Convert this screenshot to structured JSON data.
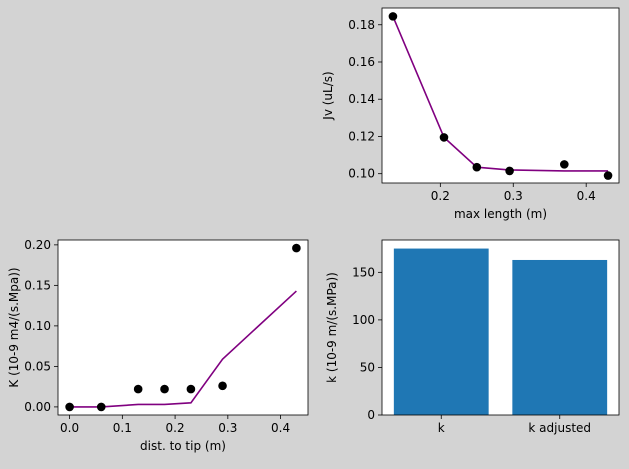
{
  "figure": {
    "background": "#d3d3d3"
  },
  "chart_data": [
    {
      "id": "jv",
      "type": "scatter+line",
      "xlabel": "max length (m)",
      "ylabel": "Jv (uL/s)",
      "xlim": [
        0.12,
        0.445
      ],
      "ylim": [
        0.095,
        0.189
      ],
      "xticks": [
        0.2,
        0.3,
        0.4
      ],
      "xtick_labels": [
        "0.2",
        "0.3",
        "0.4"
      ],
      "yticks": [
        0.1,
        0.12,
        0.14,
        0.16,
        0.18
      ],
      "ytick_labels": [
        "0.10",
        "0.12",
        "0.14",
        "0.16",
        "0.18"
      ],
      "points": [
        [
          0.135,
          0.1845
        ],
        [
          0.205,
          0.1195
        ],
        [
          0.25,
          0.1035
        ],
        [
          0.295,
          0.1015
        ],
        [
          0.37,
          0.105
        ],
        [
          0.43,
          0.099
        ]
      ],
      "line": [
        [
          0.135,
          0.1845
        ],
        [
          0.205,
          0.1195
        ],
        [
          0.25,
          0.1035
        ],
        [
          0.295,
          0.102
        ],
        [
          0.37,
          0.1015
        ],
        [
          0.43,
          0.1015
        ]
      ],
      "point_color": "#000000",
      "line_color": "#800080"
    },
    {
      "id": "K",
      "type": "scatter+line",
      "xlabel": "dist. to tip (m)",
      "ylabel": "K (10-9 m4/(s.Mpa))",
      "xlim": [
        -0.022,
        0.452
      ],
      "ylim": [
        -0.01,
        0.206
      ],
      "xticks": [
        0.0,
        0.1,
        0.2,
        0.3,
        0.4
      ],
      "xtick_labels": [
        "0.0",
        "0.1",
        "0.2",
        "0.3",
        "0.4"
      ],
      "yticks": [
        0.0,
        0.05,
        0.1,
        0.15,
        0.2
      ],
      "ytick_labels": [
        "0.00",
        "0.05",
        "0.10",
        "0.15",
        "0.20"
      ],
      "points": [
        [
          0.0,
          0.0
        ],
        [
          0.06,
          0.0
        ],
        [
          0.13,
          0.022
        ],
        [
          0.18,
          0.022
        ],
        [
          0.23,
          0.022
        ],
        [
          0.29,
          0.026
        ],
        [
          0.43,
          0.196
        ]
      ],
      "line": [
        [
          0.0,
          0.0
        ],
        [
          0.06,
          0.0
        ],
        [
          0.13,
          0.003
        ],
        [
          0.18,
          0.003
        ],
        [
          0.23,
          0.005
        ],
        [
          0.29,
          0.059
        ],
        [
          0.43,
          0.143
        ]
      ],
      "point_color": "#000000",
      "line_color": "#800080"
    },
    {
      "id": "k",
      "type": "bar",
      "xlabel": "",
      "ylabel": "k (10-9 m/(s.MPa))",
      "categories": [
        "k",
        "k adjusted"
      ],
      "values": [
        175,
        163
      ],
      "ylim": [
        0,
        184
      ],
      "yticks": [
        0,
        50,
        100,
        150
      ],
      "ytick_labels": [
        "0",
        "50",
        "100",
        "150"
      ],
      "bar_color": "#1f77b4"
    }
  ]
}
